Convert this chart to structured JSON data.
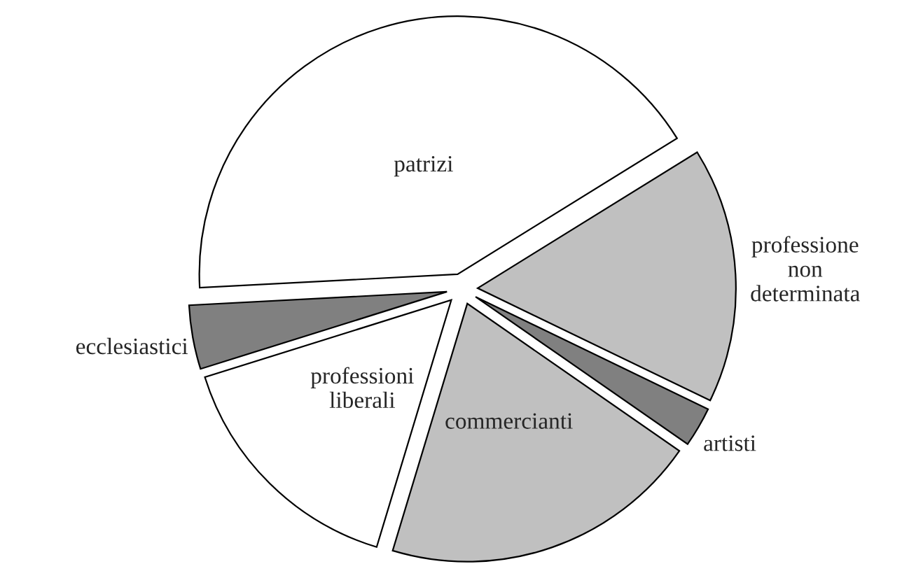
{
  "chart_data": {
    "type": "pie",
    "categories": [
      "patrizi",
      "professione non determinata",
      "artisti",
      "commercianti",
      "professioni liberali",
      "ecclesiastici"
    ],
    "values": [
      42,
      16,
      2.5,
      20,
      15.5,
      4
    ],
    "colors": [
      "#ffffff",
      "#c0c0c0",
      "#808080",
      "#c0c0c0",
      "#ffffff",
      "#808080"
    ],
    "legend": false
  }
}
